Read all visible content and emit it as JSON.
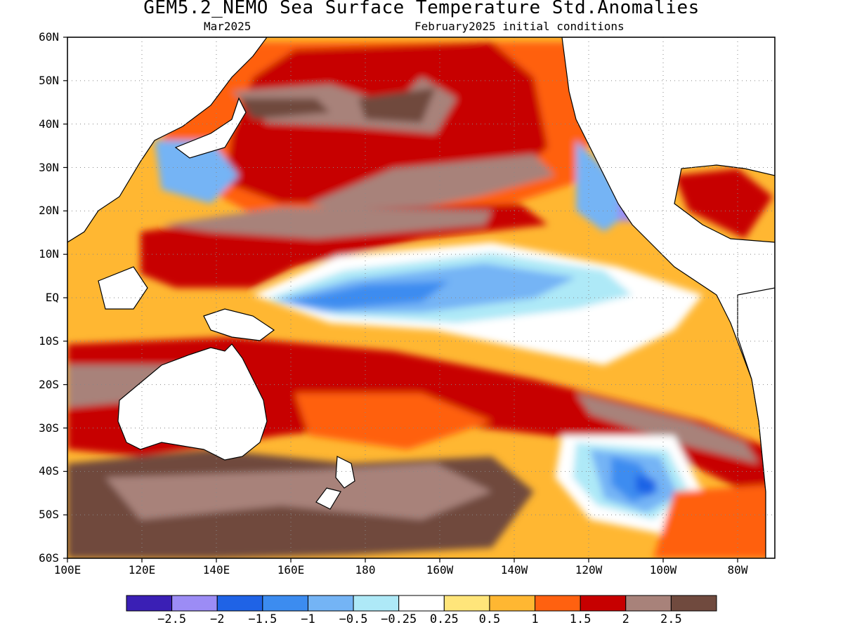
{
  "title": "GEM5.2_NEMO Sea Surface Temperature Std.Anomalies",
  "subtitle_left": "Mar2025",
  "subtitle_right": "February2025 initial conditions",
  "map": {
    "lon_range": [
      100,
      290
    ],
    "lat_range": [
      -60,
      60
    ],
    "lat_ticks": [
      {
        "value": 60,
        "label": "60N"
      },
      {
        "value": 50,
        "label": "50N"
      },
      {
        "value": 40,
        "label": "40N"
      },
      {
        "value": 30,
        "label": "30N"
      },
      {
        "value": 20,
        "label": "20N"
      },
      {
        "value": 10,
        "label": "10N"
      },
      {
        "value": 0,
        "label": "EQ"
      },
      {
        "value": -10,
        "label": "10S"
      },
      {
        "value": -20,
        "label": "20S"
      },
      {
        "value": -30,
        "label": "30S"
      },
      {
        "value": -40,
        "label": "40S"
      },
      {
        "value": -50,
        "label": "50S"
      },
      {
        "value": -60,
        "label": "60S"
      }
    ],
    "lon_ticks": [
      {
        "value": 100,
        "label": "100E"
      },
      {
        "value": 120,
        "label": "120E"
      },
      {
        "value": 140,
        "label": "140E"
      },
      {
        "value": 160,
        "label": "160E"
      },
      {
        "value": 180,
        "label": "180"
      },
      {
        "value": 200,
        "label": "160W"
      },
      {
        "value": 220,
        "label": "140W"
      },
      {
        "value": 240,
        "label": "120W"
      },
      {
        "value": 260,
        "label": "100W"
      },
      {
        "value": 280,
        "label": "80W"
      }
    ],
    "grid": "dotted"
  },
  "colorbar": {
    "colors": [
      "#3a1fb5",
      "#9c8cf5",
      "#1f63e6",
      "#3c8cf0",
      "#74b4f5",
      "#aee9f7",
      "#ffffff",
      "#ffe57a",
      "#ffb732",
      "#ff6110",
      "#c70000",
      "#a8827a",
      "#704a3e"
    ],
    "labels": [
      "−2.5",
      "−2",
      "−1.5",
      "−1",
      "−0.5",
      "−0.25",
      "0.25",
      "0.5",
      "1",
      "1.5",
      "2",
      "2.5"
    ]
  }
}
